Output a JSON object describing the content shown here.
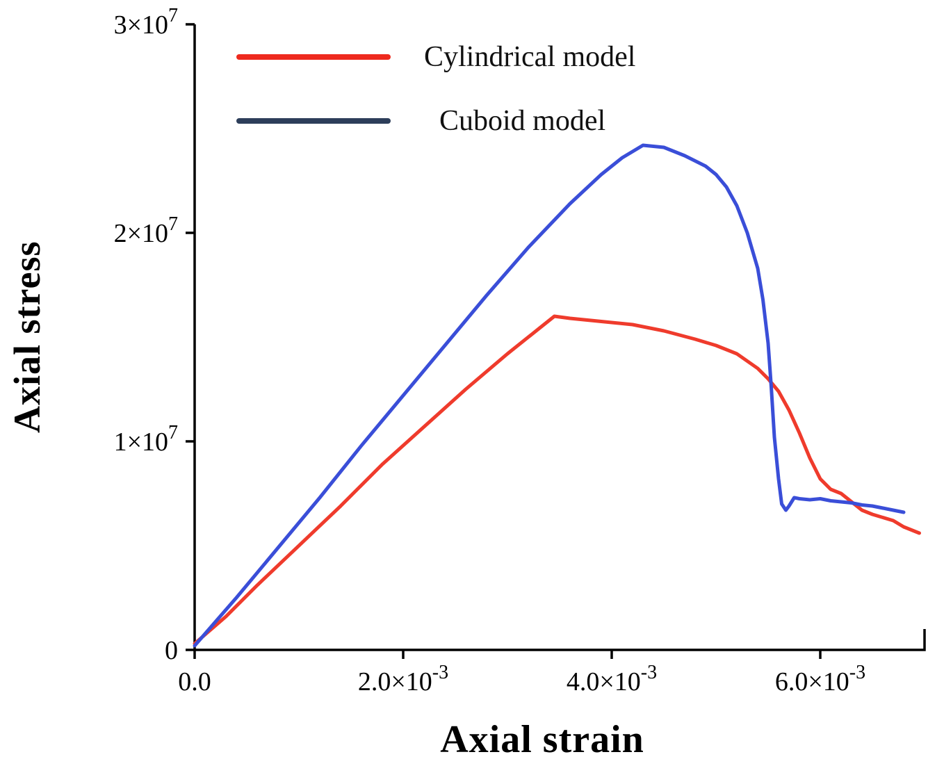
{
  "chart_data": {
    "type": "line",
    "title": "",
    "xlabel": "Axial strain",
    "ylabel": "Axial stress",
    "xlim": [
      0,
      0.007
    ],
    "ylim": [
      0,
      30000000.0
    ],
    "grid": false,
    "legend_position": "top-left-inside",
    "axis_color": "#000000",
    "xticks": [
      {
        "value": 0,
        "label": "0.0"
      },
      {
        "value": 0.002,
        "label": "2.0×10^-3"
      },
      {
        "value": 0.004,
        "label": "4.0×10^-3"
      },
      {
        "value": 0.006,
        "label": "6.0×10^-3"
      }
    ],
    "yticks": [
      {
        "value": 0,
        "label": "0"
      },
      {
        "value": 10000000.0,
        "label": "1×10^7"
      },
      {
        "value": 20000000.0,
        "label": "2×10^7"
      },
      {
        "value": 30000000.0,
        "label": "3×10^7"
      }
    ],
    "series": [
      {
        "name": "Cylindrical model",
        "color": "#ef3b2c",
        "legend_color": "#ee2a1e",
        "points": [
          [
            0,
            300000.0
          ],
          [
            0.0003,
            1600000.0
          ],
          [
            0.0006,
            3100000.0
          ],
          [
            0.001,
            5000000.0
          ],
          [
            0.0014,
            6900000.0
          ],
          [
            0.0018,
            8900000.0
          ],
          [
            0.0022,
            10700000.0
          ],
          [
            0.0026,
            12500000.0
          ],
          [
            0.003,
            14200000.0
          ],
          [
            0.0033,
            15400000.0
          ],
          [
            0.00345,
            16000000.0
          ],
          [
            0.0036,
            15900000.0
          ],
          [
            0.0039,
            15750000.0
          ],
          [
            0.0042,
            15600000.0
          ],
          [
            0.0045,
            15300000.0
          ],
          [
            0.0048,
            14900000.0
          ],
          [
            0.005,
            14600000.0
          ],
          [
            0.0052,
            14200000.0
          ],
          [
            0.0054,
            13500000.0
          ],
          [
            0.0055,
            13000000.0
          ],
          [
            0.0056,
            12400000.0
          ],
          [
            0.0057,
            11500000.0
          ],
          [
            0.0058,
            10400000.0
          ],
          [
            0.0059,
            9200000.0
          ],
          [
            0.006,
            8200000.0
          ],
          [
            0.0061,
            7700000.0
          ],
          [
            0.0062,
            7500000.0
          ],
          [
            0.0063,
            7100000.0
          ],
          [
            0.0064,
            6700000.0
          ],
          [
            0.0065,
            6500000.0
          ],
          [
            0.0067,
            6200000.0
          ],
          [
            0.0068,
            5900000.0
          ],
          [
            0.0069,
            5700000.0
          ],
          [
            0.00695,
            5600000.0
          ]
        ]
      },
      {
        "name": "Cuboid model",
        "color": "#3a4ed8",
        "legend_color": "#2d3e5a",
        "points": [
          [
            0,
            200000.0
          ],
          [
            0.0004,
            2500000.0
          ],
          [
            0.0008,
            4900000.0
          ],
          [
            0.0012,
            7300000.0
          ],
          [
            0.0016,
            9800000.0
          ],
          [
            0.002,
            12200000.0
          ],
          [
            0.0024,
            14600000.0
          ],
          [
            0.0028,
            17000000.0
          ],
          [
            0.0032,
            19300000.0
          ],
          [
            0.0036,
            21400000.0
          ],
          [
            0.0039,
            22800000.0
          ],
          [
            0.0041,
            23600000.0
          ],
          [
            0.0043,
            24200000.0
          ],
          [
            0.0045,
            24100000.0
          ],
          [
            0.0047,
            23700000.0
          ],
          [
            0.0049,
            23200000.0
          ],
          [
            0.005,
            22800000.0
          ],
          [
            0.0051,
            22200000.0
          ],
          [
            0.0052,
            21300000.0
          ],
          [
            0.0053,
            20000000.0
          ],
          [
            0.0054,
            18300000.0
          ],
          [
            0.00545,
            16800000.0
          ],
          [
            0.0055,
            14700000.0
          ],
          [
            0.00553,
            12600000.0
          ],
          [
            0.00556,
            10200000.0
          ],
          [
            0.0056,
            8200000.0
          ],
          [
            0.00563,
            7000000.0
          ],
          [
            0.00567,
            6700000.0
          ],
          [
            0.0057,
            6900000.0
          ],
          [
            0.00575,
            7300000.0
          ],
          [
            0.0058,
            7250000.0
          ],
          [
            0.0059,
            7200000.0
          ],
          [
            0.006,
            7250000.0
          ],
          [
            0.0061,
            7150000.0
          ],
          [
            0.0062,
            7100000.0
          ],
          [
            0.0063,
            7050000.0
          ],
          [
            0.0064,
            6950000.0
          ],
          [
            0.0065,
            6900000.0
          ],
          [
            0.0066,
            6800000.0
          ],
          [
            0.0067,
            6700000.0
          ],
          [
            0.0068,
            6600000.0
          ]
        ]
      }
    ]
  }
}
